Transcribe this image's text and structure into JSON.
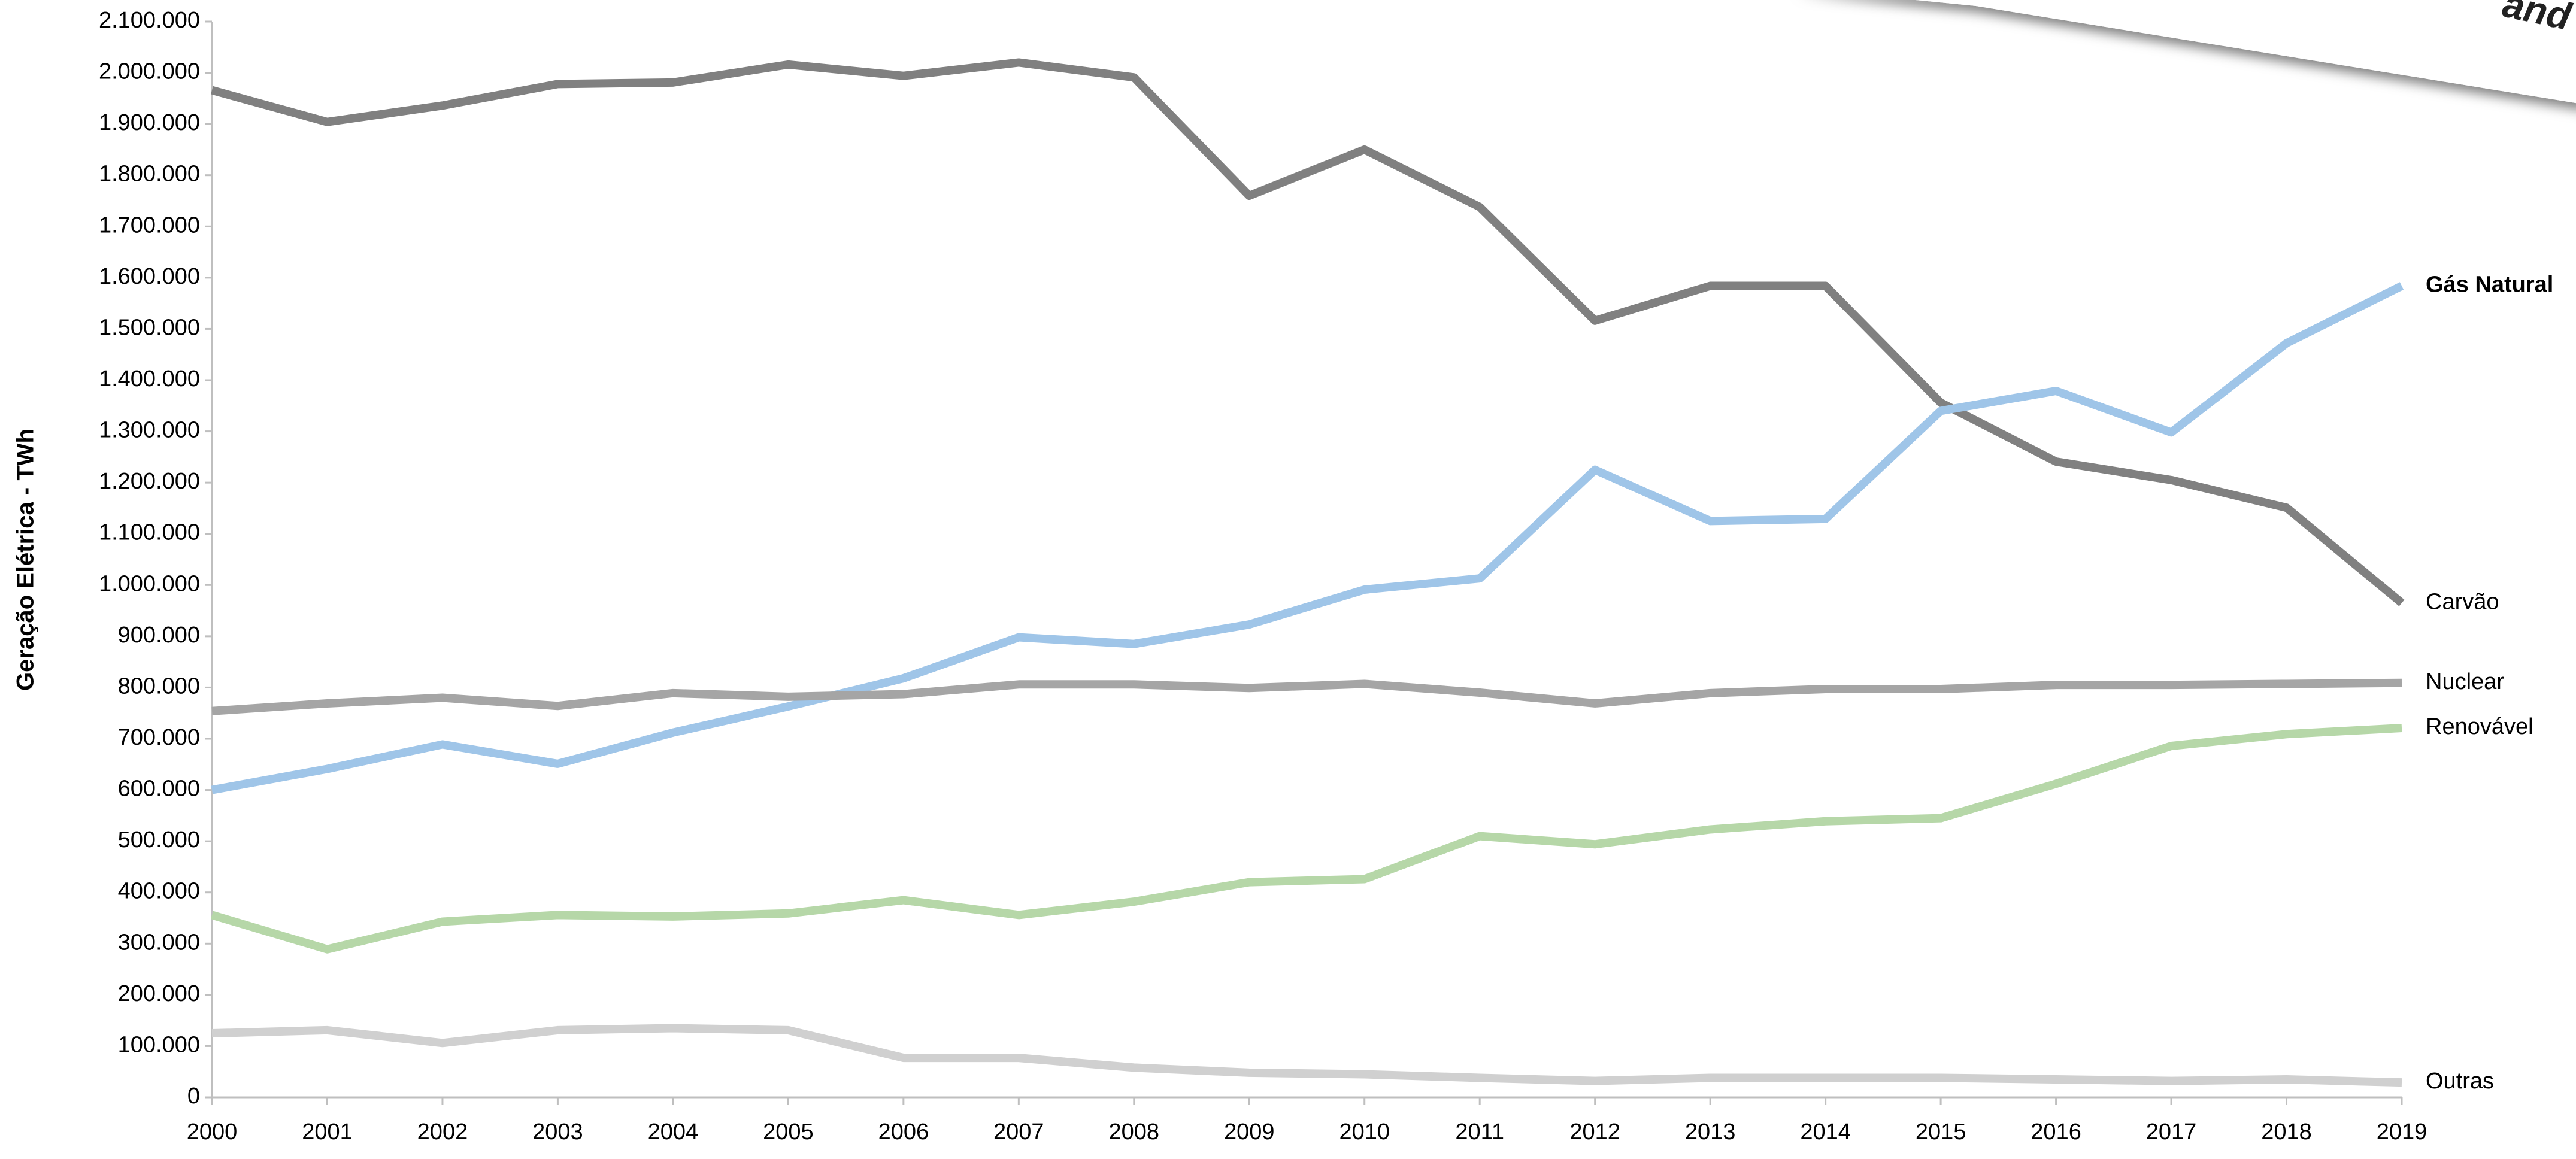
{
  "chart_data": {
    "type": "line",
    "y_label": "Geração Elétrica - TWh",
    "overlay_text": "and to",
    "categories": [
      "2000",
      "2001",
      "2002",
      "2003",
      "2004",
      "2005",
      "2006",
      "2007",
      "2008",
      "2009",
      "2010",
      "2011",
      "2012",
      "2013",
      "2014",
      "2015",
      "2016",
      "2017",
      "2018",
      "2019"
    ],
    "ylim": [
      0,
      2100000
    ],
    "yticks": [
      0,
      {
        "value": 100000,
        "label": "100.000"
      },
      {
        "value": 200000,
        "label": "200.000"
      },
      {
        "value": 300000,
        "label": "300.000"
      },
      {
        "value": 400000,
        "label": "400.000"
      },
      {
        "value": 500000,
        "label": "500.000"
      },
      {
        "value": 600000,
        "label": "600.000"
      },
      {
        "value": 700000,
        "label": "700.000"
      },
      {
        "value": 800000,
        "label": "800.000"
      },
      {
        "value": 900000,
        "label": "900.000"
      },
      {
        "value": 1000000,
        "label": "1.000.000"
      },
      {
        "value": 1100000,
        "label": "1.100.000"
      },
      {
        "value": 1200000,
        "label": "1.200.000"
      },
      {
        "value": 1300000,
        "label": "1.300.000"
      },
      {
        "value": 1400000,
        "label": "1.400.000"
      },
      {
        "value": 1500000,
        "label": "1.500.000"
      },
      {
        "value": 1600000,
        "label": "1.600.000"
      },
      {
        "value": 1700000,
        "label": "1.700.000"
      },
      {
        "value": 1800000,
        "label": "1.800.000"
      },
      {
        "value": 1900000,
        "label": "1.900.000"
      },
      {
        "value": 2000000,
        "label": "2.000.000"
      },
      {
        "value": 2100000,
        "label": "2.100.000"
      }
    ],
    "grid": false,
    "series": [
      {
        "name": "Carvão",
        "color": "#808080",
        "values": [
          1966000,
          1904000,
          1936000,
          1978000,
          1981000,
          2016000,
          1994000,
          2020000,
          1991000,
          1760000,
          1850000,
          1738000,
          1516000,
          1584000,
          1584000,
          1356000,
          1241000,
          1205000,
          1151000,
          965000
        ]
      },
      {
        "name": "Gás Natural",
        "color": "#9fc5e8",
        "bold": true,
        "values": [
          600000,
          641000,
          689000,
          651000,
          712000,
          763000,
          818000,
          898000,
          885000,
          923000,
          991000,
          1013000,
          1225000,
          1125000,
          1129000,
          1340000,
          1379000,
          1298000,
          1472000,
          1584000
        ]
      },
      {
        "name": "Nuclear",
        "color": "#a5a5a5",
        "values": [
          754000,
          769000,
          780000,
          764000,
          789000,
          782000,
          787000,
          806000,
          806000,
          799000,
          807000,
          790000,
          769000,
          789000,
          797000,
          797000,
          805000,
          805000,
          807000,
          809000
        ]
      },
      {
        "name": "Renovável",
        "color": "#b6d7a8",
        "values": [
          356000,
          289000,
          343000,
          356000,
          353000,
          359000,
          385000,
          356000,
          382000,
          420000,
          426000,
          510000,
          494000,
          523000,
          539000,
          545000,
          612000,
          686000,
          709000,
          721000
        ]
      },
      {
        "name": "Outras",
        "color": "#d0d0d0",
        "values": [
          125000,
          131000,
          106000,
          131000,
          135000,
          131000,
          77000,
          77000,
          58000,
          48000,
          45000,
          38000,
          32000,
          38000,
          38000,
          38000,
          35000,
          32000,
          35000,
          29000
        ]
      }
    ]
  }
}
